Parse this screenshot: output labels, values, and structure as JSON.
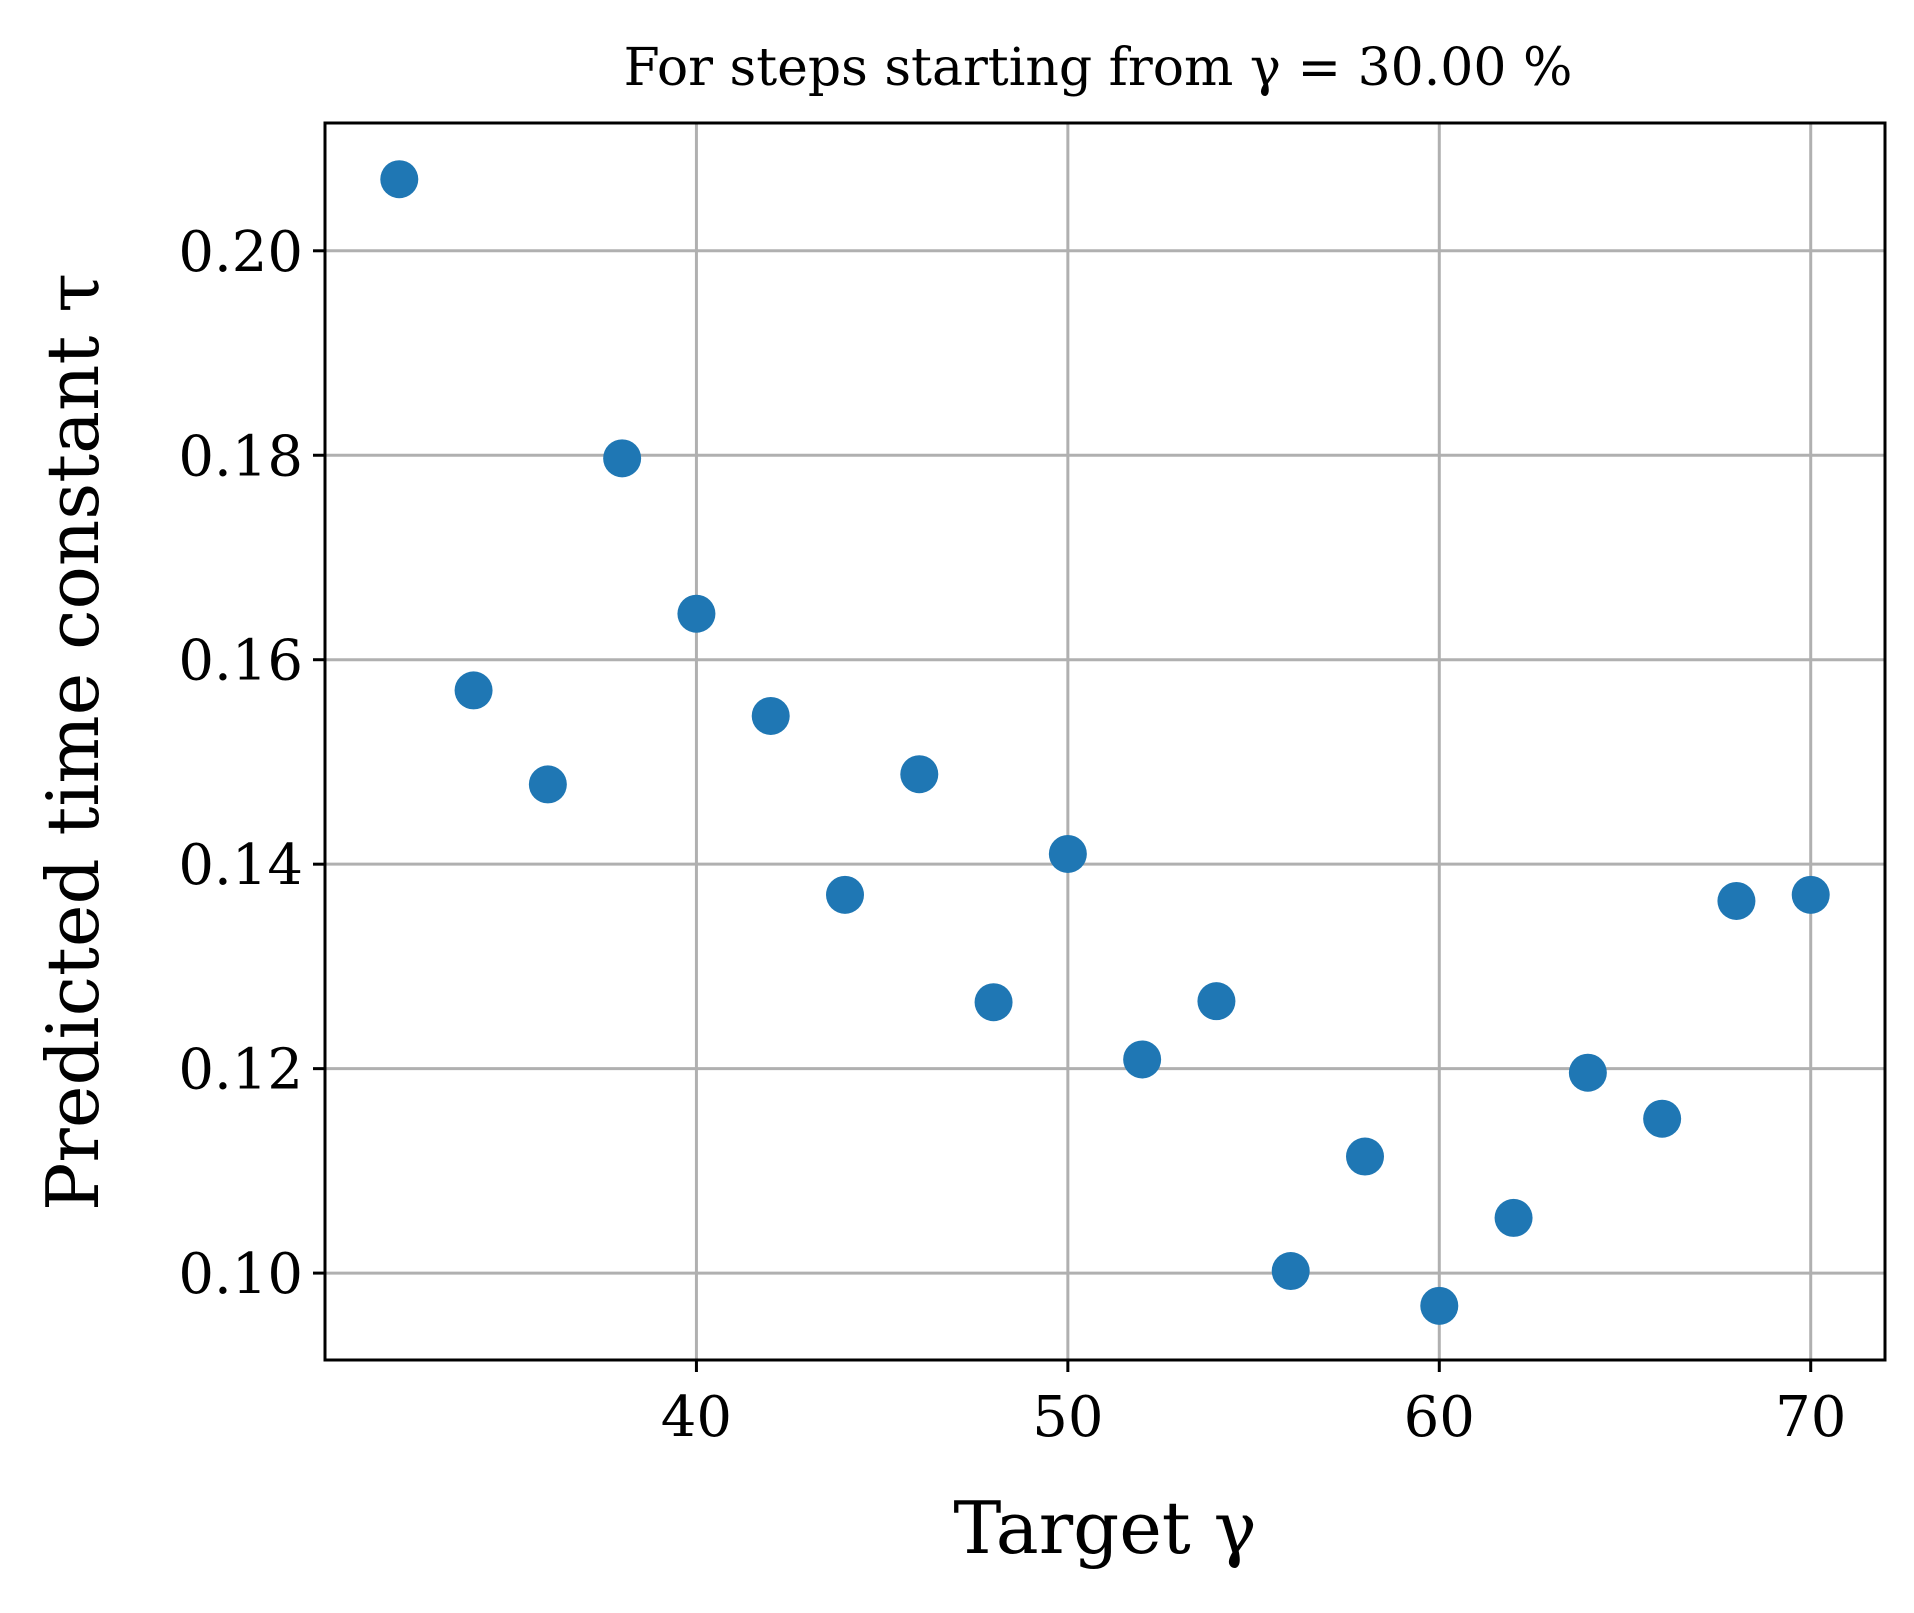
{
  "chart_data": {
    "type": "scatter",
    "title": "For steps starting from γ = 30.00 %",
    "xlabel": "Target γ",
    "ylabel": "Predicted time constant τ",
    "xlim": [
      30.0,
      72.0
    ],
    "ylim": [
      0.0915,
      0.2125
    ],
    "xticks": [
      40,
      50,
      60,
      70
    ],
    "yticks": [
      0.1,
      0.12,
      0.14,
      0.16,
      0.18,
      0.2
    ],
    "xtick_labels": [
      "40",
      "50",
      "60",
      "70"
    ],
    "ytick_labels": [
      "0.10",
      "0.12",
      "0.14",
      "0.16",
      "0.18",
      "0.20"
    ],
    "grid": true,
    "marker_color": "#1f77b4",
    "x": [
      32,
      34,
      36,
      38,
      40,
      42,
      44,
      46,
      48,
      50,
      52,
      54,
      56,
      58,
      60,
      62,
      64,
      66,
      68,
      70
    ],
    "y": [
      0.207,
      0.157,
      0.1478,
      0.1797,
      0.1645,
      0.1545,
      0.137,
      0.1488,
      0.1265,
      0.141,
      0.1209,
      0.1266,
      0.1002,
      0.1114,
      0.0968,
      0.1054,
      0.1196,
      0.1151,
      0.1364,
      0.137
    ]
  }
}
